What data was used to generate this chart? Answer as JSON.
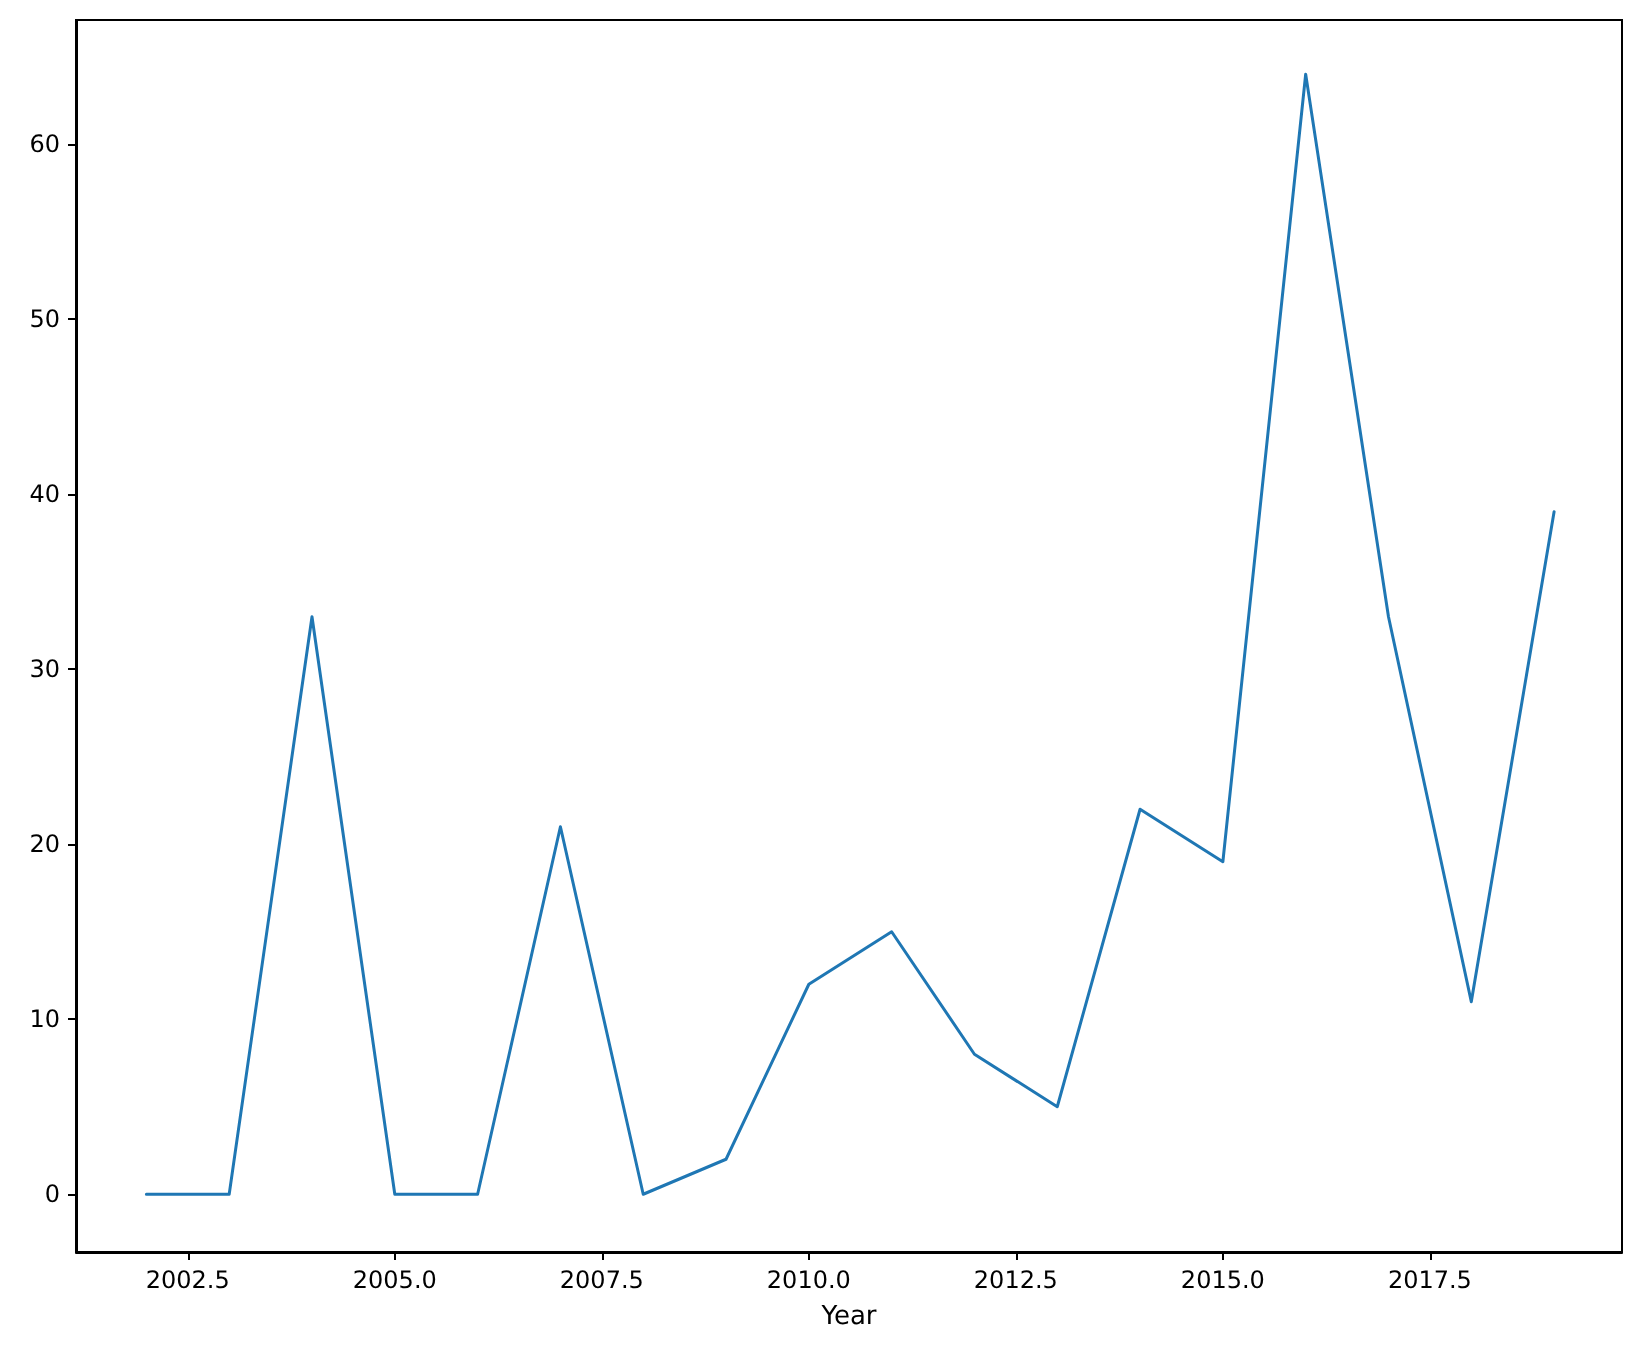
{
  "chart_data": {
    "type": "line",
    "xlabel": "Year",
    "x": [
      2002,
      2003,
      2004,
      2005,
      2006,
      2007,
      2008,
      2009,
      2010,
      2011,
      2012,
      2013,
      2014,
      2015,
      2016,
      2017,
      2018,
      2019
    ],
    "series": [
      {
        "color": "#1f77b4",
        "values": [
          0,
          0,
          33,
          0,
          0,
          21,
          0,
          2,
          12,
          15,
          8,
          5,
          22,
          19,
          64,
          33,
          11,
          39
        ]
      }
    ],
    "xlim": [
      2001.15,
      2019.82
    ],
    "xticks": [
      {
        "value": 2002.5,
        "label": "2002.5"
      },
      {
        "value": 2005,
        "label": "2005.0"
      },
      {
        "value": 2007.5,
        "label": "2007.5"
      },
      {
        "value": 2010,
        "label": "2010.0"
      },
      {
        "value": 2012.5,
        "label": "2012.5"
      },
      {
        "value": 2015,
        "label": "2015.0"
      },
      {
        "value": 2017.5,
        "label": "2017.5"
      }
    ],
    "ylim": [
      -3.3,
      67.1
    ],
    "yticks": [
      0,
      10,
      20,
      30,
      40,
      50,
      60
    ],
    "grid": false,
    "marker": "none",
    "line_style": "solid"
  }
}
